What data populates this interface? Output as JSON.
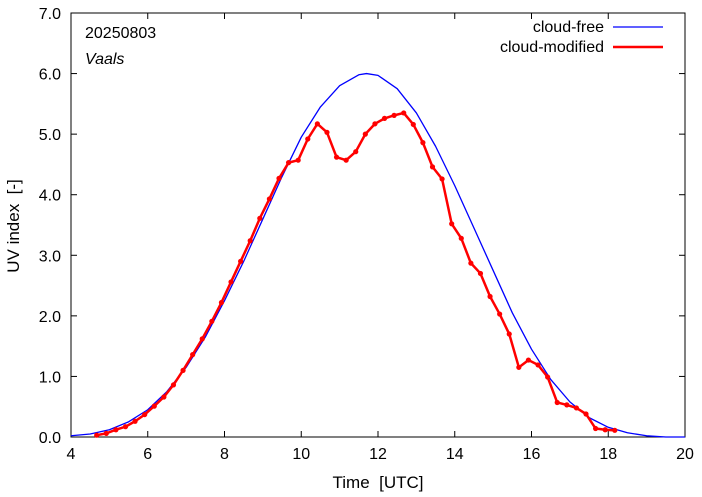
{
  "chart_data": {
    "type": "line",
    "xlabel": "Time  [UTC]",
    "ylabel": "UV index  [-]",
    "xlim": [
      4,
      20
    ],
    "ylim": [
      0,
      7
    ],
    "x_ticks": [
      4,
      6,
      8,
      10,
      12,
      14,
      16,
      18,
      20
    ],
    "x_tick_labels": [
      "4",
      "6",
      "8",
      "10",
      "12",
      "14",
      "16",
      "18",
      "20"
    ],
    "y_ticks": [
      0,
      1,
      2,
      3,
      4,
      5,
      6,
      7
    ],
    "y_tick_labels": [
      "0.0",
      "1.0",
      "2.0",
      "3.0",
      "4.0",
      "5.0",
      "6.0",
      "7.0"
    ],
    "annotations": [
      "20250803",
      "Vaals"
    ],
    "legend_position": "top-right",
    "grid": false,
    "series": [
      {
        "name": "cloud-free",
        "color": "#0000ff",
        "style": "line",
        "x": [
          4.0,
          4.5,
          5.0,
          5.5,
          6.0,
          6.5,
          7.0,
          7.5,
          8.0,
          8.5,
          9.0,
          9.5,
          10.0,
          10.5,
          11.0,
          11.5,
          11.7,
          12.0,
          12.5,
          13.0,
          13.5,
          14.0,
          14.5,
          15.0,
          15.5,
          16.0,
          16.5,
          17.0,
          17.5,
          18.0,
          18.5,
          19.0,
          19.5,
          20.0
        ],
        "y": [
          0.02,
          0.05,
          0.12,
          0.25,
          0.45,
          0.75,
          1.15,
          1.65,
          2.25,
          2.9,
          3.6,
          4.3,
          4.95,
          5.45,
          5.8,
          5.98,
          6.0,
          5.97,
          5.75,
          5.35,
          4.8,
          4.15,
          3.45,
          2.75,
          2.05,
          1.45,
          0.95,
          0.58,
          0.32,
          0.16,
          0.07,
          0.02,
          0.0,
          0.0
        ]
      },
      {
        "name": "cloud-modified",
        "color": "#ff0000",
        "style": "line-points",
        "x": [
          4.67,
          4.92,
          5.17,
          5.42,
          5.67,
          5.92,
          6.17,
          6.42,
          6.67,
          6.92,
          7.17,
          7.42,
          7.67,
          7.92,
          8.17,
          8.42,
          8.67,
          8.92,
          9.17,
          9.42,
          9.67,
          9.92,
          10.17,
          10.42,
          10.67,
          10.92,
          11.17,
          11.42,
          11.67,
          11.92,
          12.17,
          12.42,
          12.67,
          12.92,
          13.17,
          13.42,
          13.67,
          13.92,
          14.17,
          14.42,
          14.67,
          14.92,
          15.17,
          15.42,
          15.67,
          15.92,
          16.17,
          16.42,
          16.67,
          16.92,
          17.17,
          17.42,
          17.67,
          17.92,
          18.17
        ],
        "y": [
          0.03,
          0.06,
          0.12,
          0.17,
          0.26,
          0.37,
          0.51,
          0.66,
          0.86,
          1.1,
          1.36,
          1.62,
          1.91,
          2.22,
          2.56,
          2.9,
          3.24,
          3.61,
          3.93,
          4.27,
          4.53,
          4.57,
          4.92,
          5.17,
          5.03,
          4.62,
          4.57,
          4.71,
          5.0,
          5.17,
          5.26,
          5.31,
          5.35,
          5.16,
          4.86,
          4.46,
          4.26,
          3.52,
          3.28,
          2.87,
          2.7,
          2.32,
          2.03,
          1.7,
          1.15,
          1.27,
          1.19,
          0.99,
          0.57,
          0.53,
          0.48,
          0.38,
          0.14,
          0.12,
          0.11
        ]
      }
    ]
  }
}
